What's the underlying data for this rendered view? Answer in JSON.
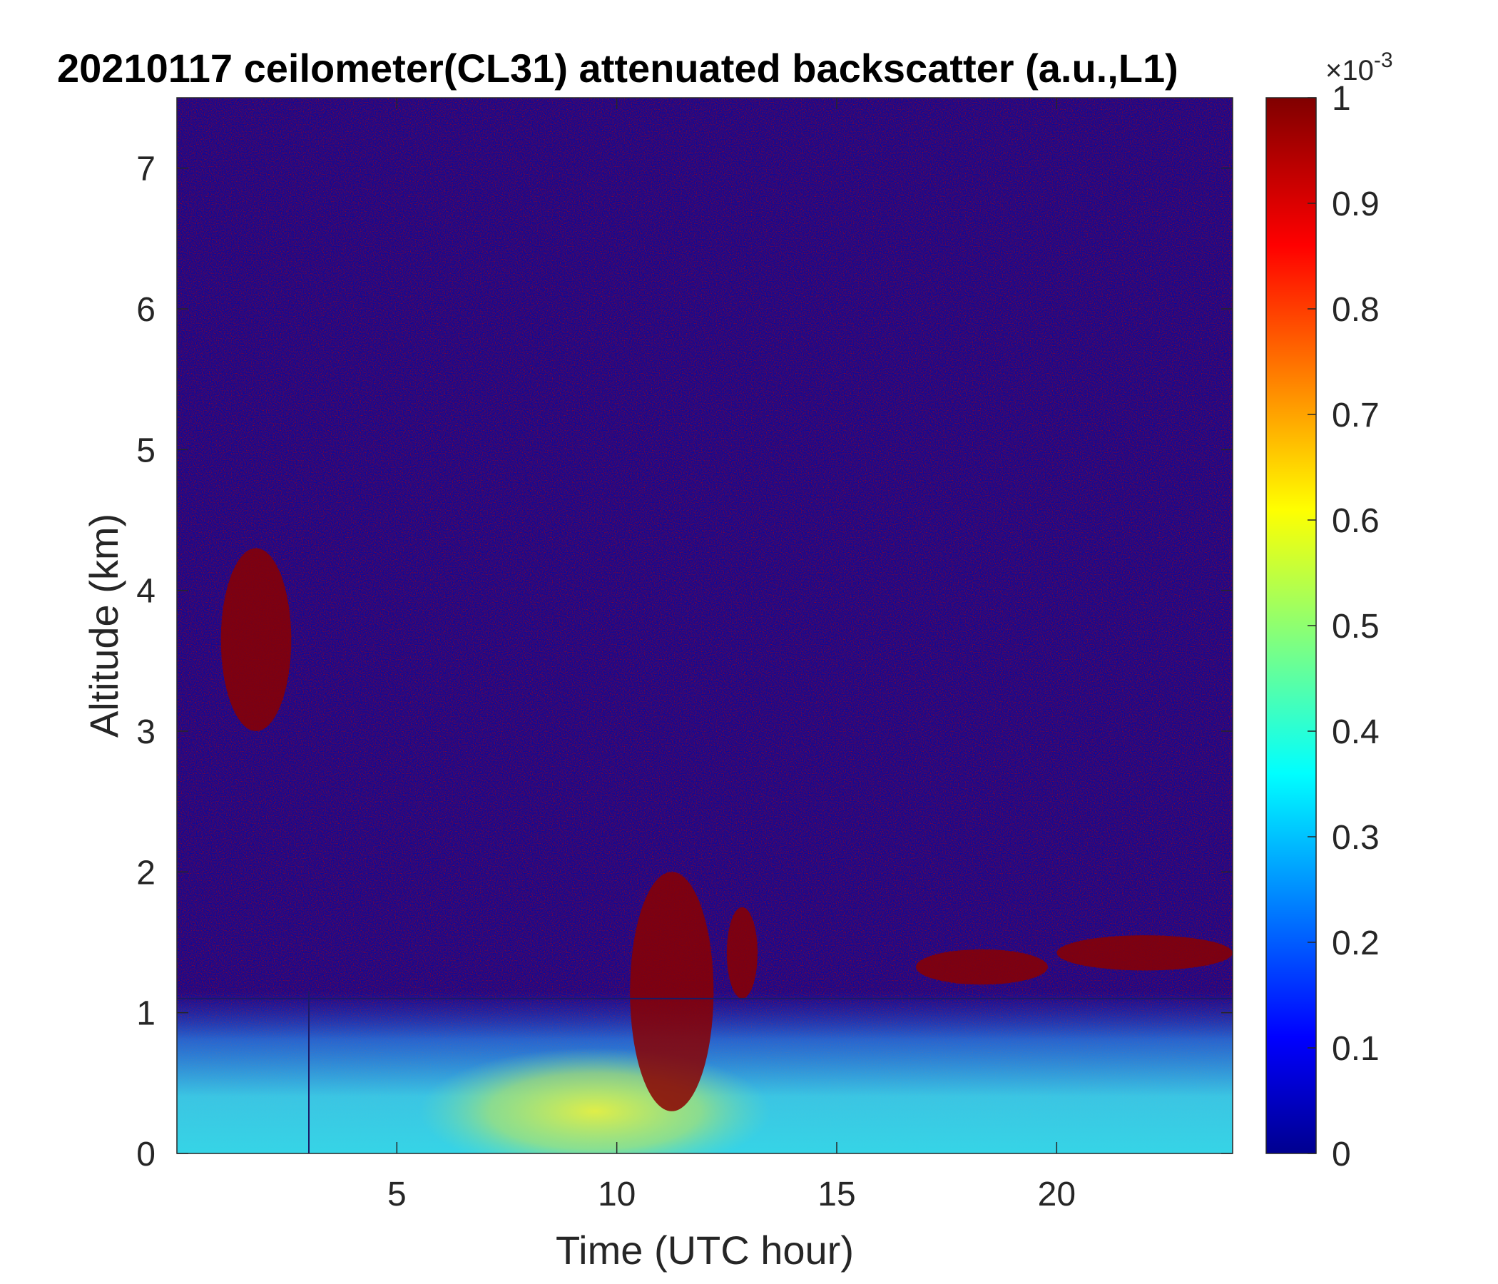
{
  "chart_data": {
    "type": "heatmap",
    "title": "20210117 ceilometer(CL31) attenuated backscatter (a.u.,L1)",
    "xlabel": "Time (UTC hour)",
    "ylabel": "Altitude (km)",
    "xlim": [
      0,
      24
    ],
    "ylim": [
      0,
      7.5
    ],
    "x_ticks": [
      5,
      10,
      15,
      20
    ],
    "y_ticks": [
      0,
      1,
      2,
      3,
      4,
      5,
      6,
      7
    ],
    "colorbar": {
      "colormap": "jet",
      "range": [
        0,
        1
      ],
      "multiplier": "×10",
      "exponent": "-3",
      "ticks": [
        0,
        0.1,
        0.2,
        0.3,
        0.4,
        0.5,
        0.6,
        0.7,
        0.8,
        0.9,
        1
      ]
    },
    "features": {
      "boundary_layer_top_km": 1.1,
      "clouds": [
        {
          "x_start": 1.0,
          "x_end": 2.6,
          "y_bottom": 3.0,
          "y_top": 4.3
        },
        {
          "x_start": 10.3,
          "x_end": 12.2,
          "y_bottom": 0.3,
          "y_top": 2.0
        },
        {
          "x_start": 12.5,
          "x_end": 13.2,
          "y_bottom": 1.1,
          "y_top": 1.75
        },
        {
          "x_start": 16.8,
          "x_end": 19.8,
          "y_bottom": 1.2,
          "y_top": 1.45
        },
        {
          "x_start": 20.0,
          "x_end": 24.0,
          "y_bottom": 1.3,
          "y_top": 1.55
        }
      ],
      "vertical_line_hour": 3.0
    }
  }
}
